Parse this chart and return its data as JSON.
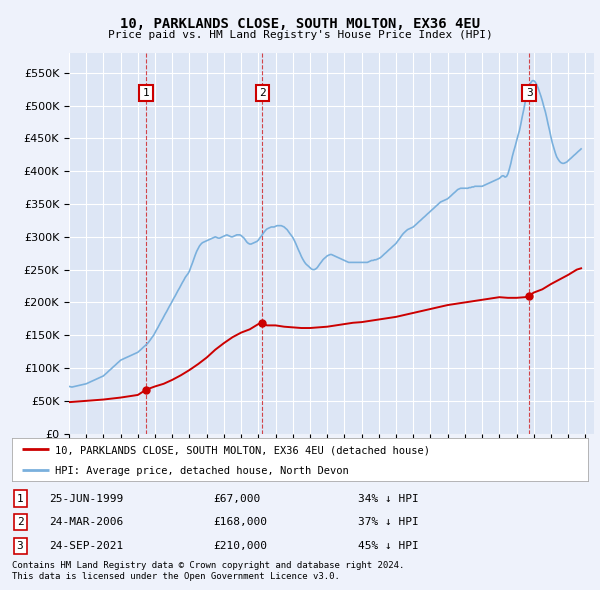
{
  "title": "10, PARKLANDS CLOSE, SOUTH MOLTON, EX36 4EU",
  "subtitle": "Price paid vs. HM Land Registry's House Price Index (HPI)",
  "ylim": [
    0,
    580000
  ],
  "yticks": [
    0,
    50000,
    100000,
    150000,
    200000,
    250000,
    300000,
    350000,
    400000,
    450000,
    500000,
    550000
  ],
  "xlim_start": 1995.0,
  "xlim_end": 2025.5,
  "bg_color": "#eef2fb",
  "plot_bg": "#dde6f5",
  "grid_color": "#ffffff",
  "hpi_color": "#7ab0dd",
  "price_color": "#cc0000",
  "sales": [
    {
      "date_num": 1999.48,
      "price": 67000,
      "label": "1"
    },
    {
      "date_num": 2006.23,
      "price": 168000,
      "label": "2"
    },
    {
      "date_num": 2021.73,
      "price": 210000,
      "label": "3"
    }
  ],
  "legend_items": [
    {
      "label": "10, PARKLANDS CLOSE, SOUTH MOLTON, EX36 4EU (detached house)",
      "color": "#cc0000"
    },
    {
      "label": "HPI: Average price, detached house, North Devon",
      "color": "#7ab0dd"
    }
  ],
  "table_rows": [
    {
      "num": "1",
      "date": "25-JUN-1999",
      "price": "£67,000",
      "hpi": "34% ↓ HPI"
    },
    {
      "num": "2",
      "date": "24-MAR-2006",
      "price": "£168,000",
      "hpi": "37% ↓ HPI"
    },
    {
      "num": "3",
      "date": "24-SEP-2021",
      "price": "£210,000",
      "hpi": "45% ↓ HPI"
    }
  ],
  "footnote1": "Contains HM Land Registry data © Crown copyright and database right 2024.",
  "footnote2": "This data is licensed under the Open Government Licence v3.0.",
  "hpi_data": [
    [
      1995.0,
      72000
    ],
    [
      1995.08,
      71500
    ],
    [
      1995.17,
      71000
    ],
    [
      1995.25,
      71500
    ],
    [
      1995.33,
      72000
    ],
    [
      1995.42,
      72500
    ],
    [
      1995.5,
      73000
    ],
    [
      1995.58,
      73500
    ],
    [
      1995.67,
      74000
    ],
    [
      1995.75,
      74500
    ],
    [
      1995.83,
      75000
    ],
    [
      1995.92,
      75500
    ],
    [
      1996.0,
      76000
    ],
    [
      1996.08,
      77000
    ],
    [
      1996.17,
      78000
    ],
    [
      1996.25,
      79000
    ],
    [
      1996.33,
      80000
    ],
    [
      1996.42,
      81000
    ],
    [
      1996.5,
      82000
    ],
    [
      1996.58,
      83000
    ],
    [
      1996.67,
      84000
    ],
    [
      1996.75,
      85000
    ],
    [
      1996.83,
      86000
    ],
    [
      1996.92,
      87000
    ],
    [
      1997.0,
      88000
    ],
    [
      1997.08,
      90000
    ],
    [
      1997.17,
      92000
    ],
    [
      1997.25,
      94000
    ],
    [
      1997.33,
      96000
    ],
    [
      1997.42,
      98000
    ],
    [
      1997.5,
      100000
    ],
    [
      1997.58,
      102000
    ],
    [
      1997.67,
      104000
    ],
    [
      1997.75,
      106000
    ],
    [
      1997.83,
      108000
    ],
    [
      1997.92,
      110000
    ],
    [
      1998.0,
      112000
    ],
    [
      1998.08,
      113000
    ],
    [
      1998.17,
      114000
    ],
    [
      1998.25,
      115000
    ],
    [
      1998.33,
      116000
    ],
    [
      1998.42,
      117000
    ],
    [
      1998.5,
      118000
    ],
    [
      1998.58,
      119000
    ],
    [
      1998.67,
      120000
    ],
    [
      1998.75,
      121000
    ],
    [
      1998.83,
      122000
    ],
    [
      1998.92,
      123000
    ],
    [
      1999.0,
      124000
    ],
    [
      1999.08,
      126000
    ],
    [
      1999.17,
      128000
    ],
    [
      1999.25,
      130000
    ],
    [
      1999.33,
      132000
    ],
    [
      1999.42,
      134000
    ],
    [
      1999.5,
      136000
    ],
    [
      1999.58,
      138000
    ],
    [
      1999.67,
      141000
    ],
    [
      1999.75,
      144000
    ],
    [
      1999.83,
      147000
    ],
    [
      1999.92,
      150000
    ],
    [
      2000.0,
      154000
    ],
    [
      2000.08,
      158000
    ],
    [
      2000.17,
      162000
    ],
    [
      2000.25,
      166000
    ],
    [
      2000.33,
      170000
    ],
    [
      2000.42,
      174000
    ],
    [
      2000.5,
      178000
    ],
    [
      2000.58,
      182000
    ],
    [
      2000.67,
      186000
    ],
    [
      2000.75,
      190000
    ],
    [
      2000.83,
      194000
    ],
    [
      2000.92,
      198000
    ],
    [
      2001.0,
      202000
    ],
    [
      2001.08,
      206000
    ],
    [
      2001.17,
      210000
    ],
    [
      2001.25,
      214000
    ],
    [
      2001.33,
      218000
    ],
    [
      2001.42,
      222000
    ],
    [
      2001.5,
      226000
    ],
    [
      2001.58,
      230000
    ],
    [
      2001.67,
      234000
    ],
    [
      2001.75,
      238000
    ],
    [
      2001.83,
      241000
    ],
    [
      2001.92,
      244000
    ],
    [
      2002.0,
      248000
    ],
    [
      2002.08,
      254000
    ],
    [
      2002.17,
      260000
    ],
    [
      2002.25,
      266000
    ],
    [
      2002.33,
      272000
    ],
    [
      2002.42,
      278000
    ],
    [
      2002.5,
      282000
    ],
    [
      2002.58,
      286000
    ],
    [
      2002.67,
      289000
    ],
    [
      2002.75,
      291000
    ],
    [
      2002.83,
      292000
    ],
    [
      2002.92,
      293000
    ],
    [
      2003.0,
      294000
    ],
    [
      2003.08,
      295000
    ],
    [
      2003.17,
      296000
    ],
    [
      2003.25,
      297000
    ],
    [
      2003.33,
      298000
    ],
    [
      2003.42,
      299000
    ],
    [
      2003.5,
      300000
    ],
    [
      2003.58,
      299000
    ],
    [
      2003.67,
      298000
    ],
    [
      2003.75,
      298000
    ],
    [
      2003.83,
      299000
    ],
    [
      2003.92,
      300000
    ],
    [
      2004.0,
      301000
    ],
    [
      2004.08,
      302000
    ],
    [
      2004.17,
      303000
    ],
    [
      2004.25,
      302000
    ],
    [
      2004.33,
      301000
    ],
    [
      2004.42,
      300000
    ],
    [
      2004.5,
      300000
    ],
    [
      2004.58,
      301000
    ],
    [
      2004.67,
      302000
    ],
    [
      2004.75,
      303000
    ],
    [
      2004.83,
      303000
    ],
    [
      2004.92,
      303000
    ],
    [
      2005.0,
      302000
    ],
    [
      2005.08,
      300000
    ],
    [
      2005.17,
      298000
    ],
    [
      2005.25,
      295000
    ],
    [
      2005.33,
      292000
    ],
    [
      2005.42,
      290000
    ],
    [
      2005.5,
      289000
    ],
    [
      2005.58,
      289000
    ],
    [
      2005.67,
      290000
    ],
    [
      2005.75,
      291000
    ],
    [
      2005.83,
      292000
    ],
    [
      2005.92,
      293000
    ],
    [
      2006.0,
      295000
    ],
    [
      2006.08,
      298000
    ],
    [
      2006.17,
      301000
    ],
    [
      2006.25,
      304000
    ],
    [
      2006.33,
      307000
    ],
    [
      2006.42,
      310000
    ],
    [
      2006.5,
      312000
    ],
    [
      2006.58,
      313000
    ],
    [
      2006.67,
      314000
    ],
    [
      2006.75,
      315000
    ],
    [
      2006.83,
      315000
    ],
    [
      2006.92,
      315000
    ],
    [
      2007.0,
      316000
    ],
    [
      2007.08,
      317000
    ],
    [
      2007.17,
      317000
    ],
    [
      2007.25,
      317000
    ],
    [
      2007.33,
      317000
    ],
    [
      2007.42,
      316000
    ],
    [
      2007.5,
      315000
    ],
    [
      2007.58,
      313000
    ],
    [
      2007.67,
      311000
    ],
    [
      2007.75,
      308000
    ],
    [
      2007.83,
      305000
    ],
    [
      2007.92,
      302000
    ],
    [
      2008.0,
      299000
    ],
    [
      2008.08,
      295000
    ],
    [
      2008.17,
      290000
    ],
    [
      2008.25,
      285000
    ],
    [
      2008.33,
      280000
    ],
    [
      2008.42,
      275000
    ],
    [
      2008.5,
      270000
    ],
    [
      2008.58,
      266000
    ],
    [
      2008.67,
      262000
    ],
    [
      2008.75,
      259000
    ],
    [
      2008.83,
      257000
    ],
    [
      2008.92,
      255000
    ],
    [
      2009.0,
      253000
    ],
    [
      2009.08,
      251000
    ],
    [
      2009.17,
      250000
    ],
    [
      2009.25,
      250000
    ],
    [
      2009.33,
      251000
    ],
    [
      2009.42,
      253000
    ],
    [
      2009.5,
      256000
    ],
    [
      2009.58,
      259000
    ],
    [
      2009.67,
      262000
    ],
    [
      2009.75,
      265000
    ],
    [
      2009.83,
      267000
    ],
    [
      2009.92,
      269000
    ],
    [
      2010.0,
      271000
    ],
    [
      2010.08,
      272000
    ],
    [
      2010.17,
      273000
    ],
    [
      2010.25,
      273000
    ],
    [
      2010.33,
      272000
    ],
    [
      2010.42,
      271000
    ],
    [
      2010.5,
      270000
    ],
    [
      2010.58,
      269000
    ],
    [
      2010.67,
      268000
    ],
    [
      2010.75,
      267000
    ],
    [
      2010.83,
      266000
    ],
    [
      2010.92,
      265000
    ],
    [
      2011.0,
      264000
    ],
    [
      2011.08,
      263000
    ],
    [
      2011.17,
      262000
    ],
    [
      2011.25,
      261000
    ],
    [
      2011.33,
      261000
    ],
    [
      2011.42,
      261000
    ],
    [
      2011.5,
      261000
    ],
    [
      2011.58,
      261000
    ],
    [
      2011.67,
      261000
    ],
    [
      2011.75,
      261000
    ],
    [
      2011.83,
      261000
    ],
    [
      2011.92,
      261000
    ],
    [
      2012.0,
      261000
    ],
    [
      2012.08,
      261000
    ],
    [
      2012.17,
      261000
    ],
    [
      2012.25,
      261000
    ],
    [
      2012.33,
      261000
    ],
    [
      2012.42,
      262000
    ],
    [
      2012.5,
      263000
    ],
    [
      2012.58,
      264000
    ],
    [
      2012.67,
      264000
    ],
    [
      2012.75,
      265000
    ],
    [
      2012.83,
      265000
    ],
    [
      2012.92,
      266000
    ],
    [
      2013.0,
      267000
    ],
    [
      2013.08,
      268000
    ],
    [
      2013.17,
      270000
    ],
    [
      2013.25,
      272000
    ],
    [
      2013.33,
      274000
    ],
    [
      2013.42,
      276000
    ],
    [
      2013.5,
      278000
    ],
    [
      2013.58,
      280000
    ],
    [
      2013.67,
      282000
    ],
    [
      2013.75,
      284000
    ],
    [
      2013.83,
      286000
    ],
    [
      2013.92,
      288000
    ],
    [
      2014.0,
      290000
    ],
    [
      2014.08,
      293000
    ],
    [
      2014.17,
      296000
    ],
    [
      2014.25,
      299000
    ],
    [
      2014.33,
      302000
    ],
    [
      2014.42,
      305000
    ],
    [
      2014.5,
      307000
    ],
    [
      2014.58,
      309000
    ],
    [
      2014.67,
      311000
    ],
    [
      2014.75,
      312000
    ],
    [
      2014.83,
      313000
    ],
    [
      2014.92,
      314000
    ],
    [
      2015.0,
      315000
    ],
    [
      2015.08,
      317000
    ],
    [
      2015.17,
      319000
    ],
    [
      2015.25,
      321000
    ],
    [
      2015.33,
      323000
    ],
    [
      2015.42,
      325000
    ],
    [
      2015.5,
      327000
    ],
    [
      2015.58,
      329000
    ],
    [
      2015.67,
      331000
    ],
    [
      2015.75,
      333000
    ],
    [
      2015.83,
      335000
    ],
    [
      2015.92,
      337000
    ],
    [
      2016.0,
      339000
    ],
    [
      2016.08,
      341000
    ],
    [
      2016.17,
      343000
    ],
    [
      2016.25,
      345000
    ],
    [
      2016.33,
      347000
    ],
    [
      2016.42,
      349000
    ],
    [
      2016.5,
      351000
    ],
    [
      2016.58,
      353000
    ],
    [
      2016.67,
      354000
    ],
    [
      2016.75,
      355000
    ],
    [
      2016.83,
      356000
    ],
    [
      2016.92,
      357000
    ],
    [
      2017.0,
      358000
    ],
    [
      2017.08,
      360000
    ],
    [
      2017.17,
      362000
    ],
    [
      2017.25,
      364000
    ],
    [
      2017.33,
      366000
    ],
    [
      2017.42,
      368000
    ],
    [
      2017.5,
      370000
    ],
    [
      2017.58,
      372000
    ],
    [
      2017.67,
      373000
    ],
    [
      2017.75,
      374000
    ],
    [
      2017.83,
      374000
    ],
    [
      2017.92,
      374000
    ],
    [
      2018.0,
      374000
    ],
    [
      2018.08,
      374000
    ],
    [
      2018.17,
      374000
    ],
    [
      2018.25,
      375000
    ],
    [
      2018.33,
      375000
    ],
    [
      2018.42,
      376000
    ],
    [
      2018.5,
      376000
    ],
    [
      2018.58,
      377000
    ],
    [
      2018.67,
      377000
    ],
    [
      2018.75,
      377000
    ],
    [
      2018.83,
      377000
    ],
    [
      2018.92,
      377000
    ],
    [
      2019.0,
      377000
    ],
    [
      2019.08,
      378000
    ],
    [
      2019.17,
      379000
    ],
    [
      2019.25,
      380000
    ],
    [
      2019.33,
      381000
    ],
    [
      2019.42,
      382000
    ],
    [
      2019.5,
      383000
    ],
    [
      2019.58,
      384000
    ],
    [
      2019.67,
      385000
    ],
    [
      2019.75,
      386000
    ],
    [
      2019.83,
      387000
    ],
    [
      2019.92,
      388000
    ],
    [
      2020.0,
      389000
    ],
    [
      2020.08,
      391000
    ],
    [
      2020.17,
      393000
    ],
    [
      2020.25,
      393000
    ],
    [
      2020.33,
      391000
    ],
    [
      2020.42,
      392000
    ],
    [
      2020.5,
      396000
    ],
    [
      2020.58,
      403000
    ],
    [
      2020.67,
      412000
    ],
    [
      2020.75,
      422000
    ],
    [
      2020.83,
      430000
    ],
    [
      2020.92,
      438000
    ],
    [
      2021.0,
      446000
    ],
    [
      2021.08,
      454000
    ],
    [
      2021.17,
      462000
    ],
    [
      2021.25,
      472000
    ],
    [
      2021.33,
      483000
    ],
    [
      2021.42,
      494000
    ],
    [
      2021.5,
      505000
    ],
    [
      2021.58,
      515000
    ],
    [
      2021.67,
      523000
    ],
    [
      2021.75,
      530000
    ],
    [
      2021.83,
      535000
    ],
    [
      2021.92,
      538000
    ],
    [
      2022.0,
      538000
    ],
    [
      2022.08,
      536000
    ],
    [
      2022.17,
      532000
    ],
    [
      2022.25,
      527000
    ],
    [
      2022.33,
      521000
    ],
    [
      2022.42,
      514000
    ],
    [
      2022.5,
      507000
    ],
    [
      2022.58,
      499000
    ],
    [
      2022.67,
      491000
    ],
    [
      2022.75,
      482000
    ],
    [
      2022.83,
      472000
    ],
    [
      2022.92,
      462000
    ],
    [
      2023.0,
      452000
    ],
    [
      2023.08,
      443000
    ],
    [
      2023.17,
      435000
    ],
    [
      2023.25,
      428000
    ],
    [
      2023.33,
      422000
    ],
    [
      2023.42,
      418000
    ],
    [
      2023.5,
      415000
    ],
    [
      2023.58,
      413000
    ],
    [
      2023.67,
      412000
    ],
    [
      2023.75,
      412000
    ],
    [
      2023.83,
      413000
    ],
    [
      2023.92,
      414000
    ],
    [
      2024.0,
      416000
    ],
    [
      2024.08,
      418000
    ],
    [
      2024.17,
      420000
    ],
    [
      2024.25,
      422000
    ],
    [
      2024.33,
      424000
    ],
    [
      2024.42,
      426000
    ],
    [
      2024.5,
      428000
    ],
    [
      2024.58,
      430000
    ],
    [
      2024.67,
      432000
    ],
    [
      2024.75,
      434000
    ]
  ],
  "price_line_data": [
    [
      1995.0,
      48000
    ],
    [
      1995.5,
      49000
    ],
    [
      1996.0,
      50000
    ],
    [
      1996.5,
      51000
    ],
    [
      1997.0,
      52000
    ],
    [
      1997.5,
      53500
    ],
    [
      1998.0,
      55000
    ],
    [
      1998.5,
      57000
    ],
    [
      1999.0,
      59000
    ],
    [
      1999.48,
      67000
    ],
    [
      1999.58,
      68000
    ],
    [
      2000.0,
      72000
    ],
    [
      2000.5,
      76000
    ],
    [
      2001.0,
      82000
    ],
    [
      2001.5,
      89000
    ],
    [
      2002.0,
      97000
    ],
    [
      2002.5,
      106000
    ],
    [
      2003.0,
      116000
    ],
    [
      2003.5,
      128000
    ],
    [
      2004.0,
      138000
    ],
    [
      2004.5,
      147000
    ],
    [
      2005.0,
      154000
    ],
    [
      2005.5,
      159000
    ],
    [
      2005.75,
      163000
    ],
    [
      2006.0,
      167000
    ],
    [
      2006.23,
      168000
    ],
    [
      2006.5,
      165000
    ],
    [
      2007.0,
      165000
    ],
    [
      2007.5,
      163000
    ],
    [
      2008.0,
      162000
    ],
    [
      2008.5,
      161000
    ],
    [
      2009.0,
      161000
    ],
    [
      2009.5,
      162000
    ],
    [
      2010.0,
      163000
    ],
    [
      2010.5,
      165000
    ],
    [
      2011.0,
      167000
    ],
    [
      2011.5,
      169000
    ],
    [
      2012.0,
      170000
    ],
    [
      2012.5,
      172000
    ],
    [
      2013.0,
      174000
    ],
    [
      2013.5,
      176000
    ],
    [
      2014.0,
      178000
    ],
    [
      2014.5,
      181000
    ],
    [
      2015.0,
      184000
    ],
    [
      2015.5,
      187000
    ],
    [
      2016.0,
      190000
    ],
    [
      2016.5,
      193000
    ],
    [
      2017.0,
      196000
    ],
    [
      2017.5,
      198000
    ],
    [
      2018.0,
      200000
    ],
    [
      2018.5,
      202000
    ],
    [
      2019.0,
      204000
    ],
    [
      2019.5,
      206000
    ],
    [
      2020.0,
      208000
    ],
    [
      2020.5,
      207000
    ],
    [
      2021.0,
      207000
    ],
    [
      2021.5,
      208000
    ],
    [
      2021.73,
      210000
    ],
    [
      2022.0,
      215000
    ],
    [
      2022.5,
      220000
    ],
    [
      2023.0,
      228000
    ],
    [
      2023.5,
      235000
    ],
    [
      2024.0,
      242000
    ],
    [
      2024.5,
      250000
    ],
    [
      2024.75,
      252000
    ]
  ]
}
